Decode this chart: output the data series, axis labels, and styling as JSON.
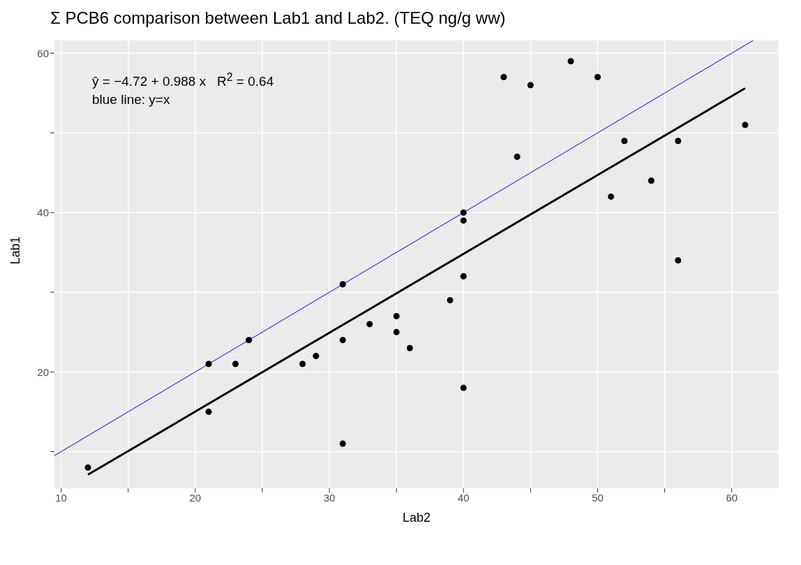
{
  "chart_data": {
    "type": "scatter",
    "title": "Σ PCB6 comparison between Lab1 and Lab2. (TEQ ng/g ww)",
    "xlabel": "Lab2",
    "ylabel": "Lab1",
    "annotations": [
      "ŷ = −4.72 + 0.988 x   R$^{2}$ = 0.64",
      "blue line: y=x"
    ],
    "xlim": [
      9.5,
      63.5
    ],
    "ylim": [
      5.4,
      61.6
    ],
    "xticks": [
      {
        "value": 10,
        "label": "10"
      },
      {
        "value": 15,
        "label": null
      },
      {
        "value": 20,
        "label": "20"
      },
      {
        "value": 25,
        "label": null
      },
      {
        "value": 30,
        "label": "30"
      },
      {
        "value": 35,
        "label": null
      },
      {
        "value": 40,
        "label": "40"
      },
      {
        "value": 45,
        "label": null
      },
      {
        "value": 50,
        "label": "50"
      },
      {
        "value": 55,
        "label": null
      },
      {
        "value": 60,
        "label": "60"
      }
    ],
    "yticks": [
      {
        "value": 10,
        "label": null
      },
      {
        "value": 20,
        "label": "20"
      },
      {
        "value": 30,
        "label": null
      },
      {
        "value": 40,
        "label": "40"
      },
      {
        "value": 50,
        "label": null
      },
      {
        "value": 60,
        "label": "60"
      }
    ],
    "grid": true,
    "series": [
      {
        "color": "#000000",
        "marker": "circle",
        "x": [
          12,
          21,
          21,
          23,
          24,
          28,
          29,
          31,
          31,
          31,
          33,
          35,
          35,
          36,
          39,
          40,
          40,
          40,
          40,
          43,
          44,
          45,
          48,
          50,
          51,
          52,
          54,
          56,
          56,
          61
        ],
        "values": [
          8,
          21,
          15,
          21,
          24,
          21,
          22,
          31,
          24,
          11,
          26,
          27,
          25,
          23,
          29,
          40,
          39,
          32,
          18,
          57,
          47,
          56,
          59,
          57,
          42,
          49,
          44,
          49,
          34,
          51
        ]
      },
      {
        "type": "line",
        "color": "#0000ff",
        "marker": "none",
        "x": [
          9.5,
          61.6
        ],
        "values": [
          9.5,
          61.6
        ]
      },
      {
        "type": "line",
        "color": "#000000",
        "marker": "none",
        "x": [
          12,
          61
        ],
        "values": [
          7.1,
          55.6
        ]
      }
    ]
  }
}
